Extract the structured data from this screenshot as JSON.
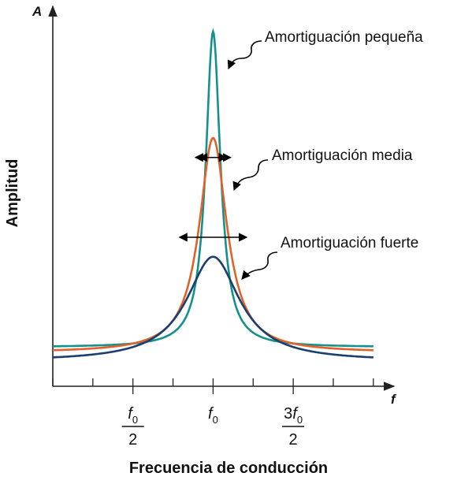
{
  "chart_data": {
    "type": "line",
    "title": "",
    "xlabel": "Frecuencia de conducción",
    "ylabel": "Amplitud",
    "x_axis_symbol": "f",
    "y_axis_symbol": "A",
    "x_ticks": [
      {
        "value": 0.5,
        "numerator_prefix": "",
        "symbol": "f",
        "subscript": "0",
        "denominator": "2"
      },
      {
        "value": 1.0,
        "numerator_prefix": "",
        "symbol": "f",
        "subscript": "0",
        "denominator": ""
      },
      {
        "value": 1.5,
        "numerator_prefix": "3",
        "symbol": "f",
        "subscript": "0",
        "denominator": "2"
      }
    ],
    "x_minor_ticks": [
      0,
      0.25,
      0.5,
      0.75,
      1.0,
      1.25,
      1.5,
      1.75,
      2.0
    ],
    "xlim": [
      0,
      2.05
    ],
    "ylim": [
      0,
      1
    ],
    "grid": false,
    "legend": "none",
    "series": [
      {
        "name": "Amortiguación pequeña",
        "color": "#14918d",
        "peak_x": 1.0,
        "peak": 1.0,
        "baseline": 0.11,
        "half_width": 0.055
      },
      {
        "name": "Amortiguación media",
        "color": "#e0622a",
        "peak_x": 1.0,
        "peak": 0.7,
        "baseline": 0.095,
        "half_width": 0.105
      },
      {
        "name": "Amortiguación fuerte",
        "color": "#1a3f6e",
        "peak_x": 1.0,
        "peak": 0.365,
        "baseline": 0.07,
        "half_width": 0.2
      }
    ]
  }
}
